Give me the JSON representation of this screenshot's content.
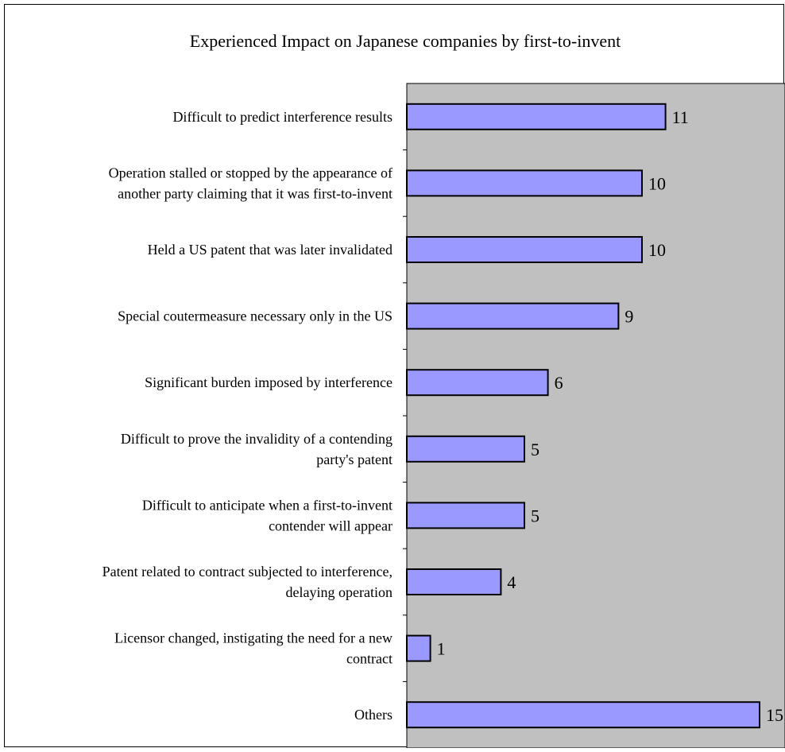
{
  "chart_data": {
    "type": "bar",
    "orientation": "horizontal",
    "title": "Experienced Impact on Japanese companies by first-to-invent",
    "categories": [
      [
        "Difficult to predict interference results"
      ],
      [
        "Operation stalled or stopped by the appearance of",
        "another party claiming that it was first-to-invent"
      ],
      [
        "Held a US patent that was later invalidated"
      ],
      [
        "Special coutermeasure necessary only in the US"
      ],
      [
        "Significant burden imposed by interference"
      ],
      [
        "Difficult to prove the invalidity of a contending",
        "party's patent"
      ],
      [
        "Difficult to anticipate when a first-to-invent",
        "contender will appear"
      ],
      [
        "Patent related to contract subjected to interference,",
        "delaying operation"
      ],
      [
        "Licensor changed, instigating the need for a new",
        "contract"
      ],
      [
        "Others"
      ]
    ],
    "values": [
      11,
      10,
      10,
      9,
      6,
      5,
      5,
      4,
      1,
      15
    ],
    "xlim": [
      0,
      16
    ],
    "grid": false,
    "colors": {
      "bar_fill": "#9999ff",
      "bar_stroke": "#000000",
      "plot_background": "#c0c0c0",
      "frame": "#000000"
    }
  }
}
